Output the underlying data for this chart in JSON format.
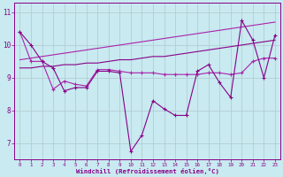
{
  "xlabel": "Windchill (Refroidissement éolien,°C)",
  "background_color": "#c8eaf0",
  "grid_color": "#b0c8d0",
  "line_color_dark": "#880088",
  "line_color_mid": "#aa22aa",
  "line_color_light": "#cc55cc",
  "x": [
    0,
    1,
    2,
    3,
    4,
    5,
    6,
    7,
    8,
    9,
    10,
    11,
    12,
    13,
    14,
    15,
    16,
    17,
    18,
    19,
    20,
    21,
    22,
    23
  ],
  "y_line1": [
    10.4,
    10.0,
    9.5,
    9.3,
    8.6,
    8.7,
    8.7,
    9.2,
    9.2,
    9.15,
    6.75,
    7.25,
    8.3,
    8.05,
    7.85,
    7.85,
    9.2,
    9.4,
    8.85,
    8.4,
    10.75,
    10.15,
    9.0,
    10.3
  ],
  "y_line2": [
    10.4,
    9.5,
    9.5,
    8.65,
    8.9,
    8.8,
    8.75,
    9.25,
    9.25,
    9.2,
    9.15,
    9.15,
    9.15,
    9.1,
    9.1,
    9.1,
    9.1,
    9.15,
    9.15,
    9.1,
    9.15,
    9.5,
    9.6,
    9.6
  ],
  "y_trend1": [
    9.3,
    9.3,
    9.35,
    9.35,
    9.4,
    9.4,
    9.45,
    9.45,
    9.5,
    9.55,
    9.55,
    9.6,
    9.65,
    9.65,
    9.7,
    9.75,
    9.8,
    9.85,
    9.9,
    9.95,
    10.0,
    10.05,
    10.1,
    10.15
  ],
  "y_trend2": [
    9.55,
    9.6,
    9.65,
    9.7,
    9.75,
    9.8,
    9.85,
    9.9,
    9.95,
    10.0,
    10.05,
    10.1,
    10.15,
    10.2,
    10.25,
    10.3,
    10.35,
    10.4,
    10.45,
    10.5,
    10.55,
    10.6,
    10.65,
    10.7
  ],
  "ylim": [
    6.5,
    11.3
  ],
  "xlim": [
    -0.5,
    23.5
  ],
  "yticks": [
    7,
    8,
    9,
    10,
    11
  ],
  "xticks": [
    0,
    1,
    2,
    3,
    4,
    5,
    6,
    7,
    8,
    9,
    10,
    11,
    12,
    13,
    14,
    15,
    16,
    17,
    18,
    19,
    20,
    21,
    22,
    23
  ]
}
